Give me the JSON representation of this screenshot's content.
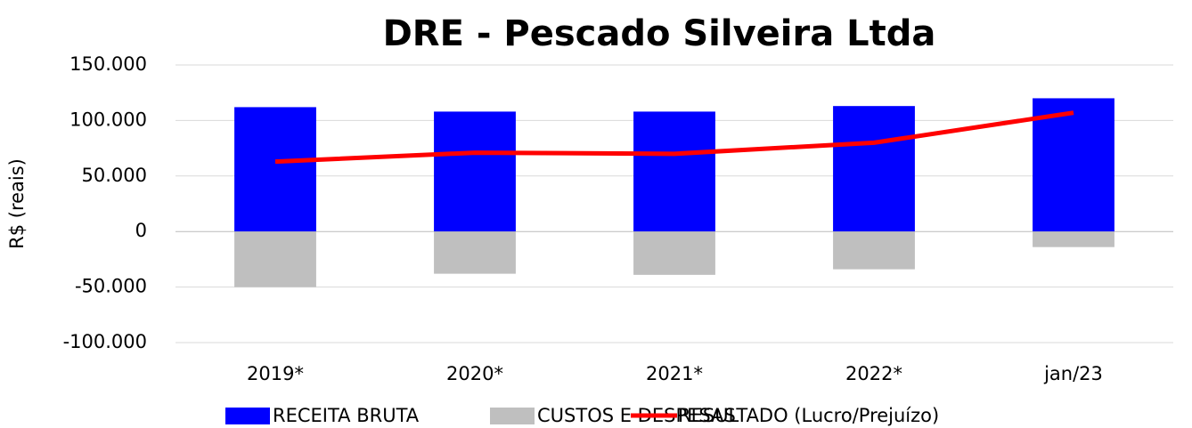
{
  "chart_data": {
    "type": "bar",
    "title": "DRE - Pescado Silveira Ltda",
    "y_label": "R$ (reais)",
    "categories": [
      "2019*",
      "2020*",
      "2021*",
      "2022*",
      "jan/23"
    ],
    "series": [
      {
        "name": "RECEITA BRUTA",
        "type": "bar",
        "color": "#0000ff",
        "values": [
          112000,
          108000,
          108000,
          113000,
          120000
        ]
      },
      {
        "name": "CUSTOS E DESPESAS",
        "type": "bar",
        "color": "#bfbfbf",
        "values": [
          -50000,
          -38000,
          -39000,
          -34000,
          -14000
        ]
      },
      {
        "name": "RESULTADO (Lucro/Prejuízo)",
        "type": "line",
        "color": "#ff0000",
        "values": [
          63000,
          71000,
          70000,
          80000,
          107000
        ]
      }
    ],
    "ylim": [
      -100000,
      150000
    ],
    "yticks": [
      {
        "value": -100000,
        "label": "-100.000"
      },
      {
        "value": -50000,
        "label": "-50.000"
      },
      {
        "value": 0,
        "label": "0"
      },
      {
        "value": 50000,
        "label": "50.000"
      },
      {
        "value": 100000,
        "label": "100.000"
      },
      {
        "value": 150000,
        "label": "150.000"
      }
    ],
    "negative_tick_color": "#ff0000",
    "grid": true,
    "legend": "bottom"
  }
}
